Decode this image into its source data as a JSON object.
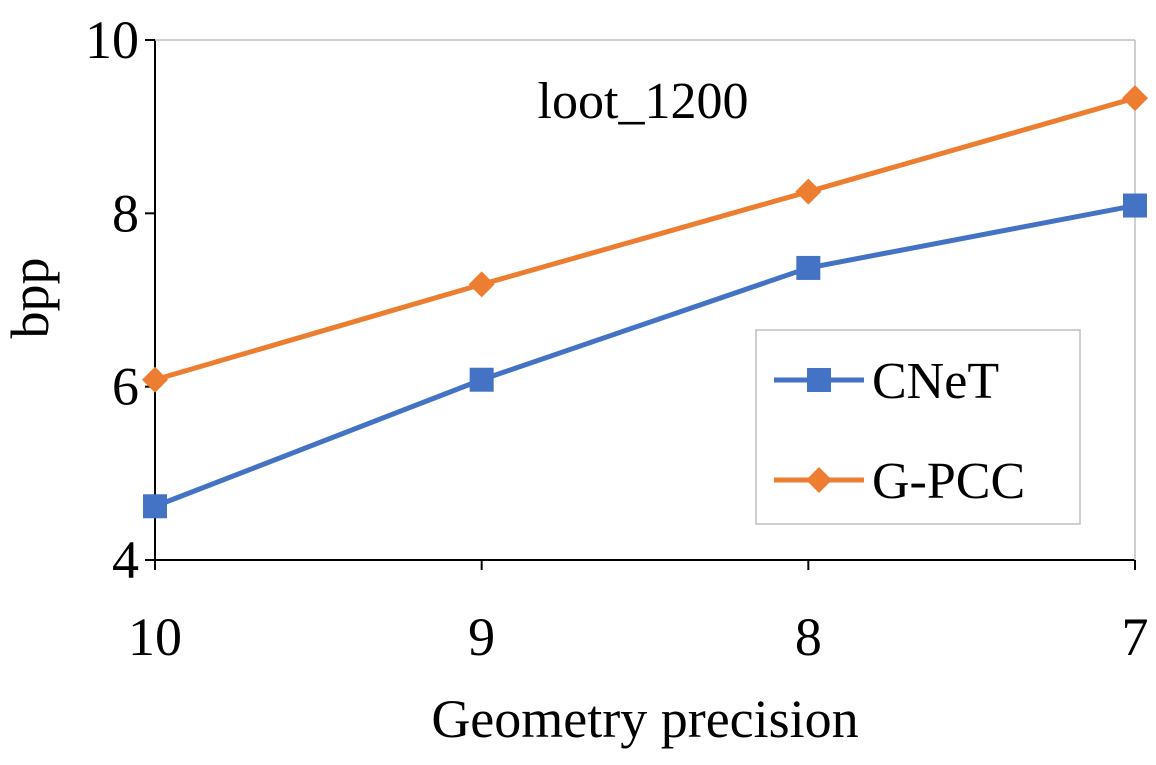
{
  "chart_data": {
    "type": "line",
    "title": "loot_1200",
    "xlabel": "Geometry precision",
    "ylabel": "bpp",
    "categories": [
      "10",
      "9",
      "8",
      "7"
    ],
    "ylim": [
      4,
      10
    ],
    "yticks": [
      "4",
      "6",
      "8",
      "10"
    ],
    "grid": false,
    "legend_position": "bottom-right",
    "series": [
      {
        "name": "CNeT",
        "values": [
          4.62,
          6.08,
          7.37,
          8.09
        ],
        "color": "#4472C4",
        "marker": "square"
      },
      {
        "name": "G-PCC",
        "values": [
          6.08,
          7.18,
          8.25,
          9.33
        ],
        "color": "#ED7D31",
        "marker": "diamond"
      }
    ]
  }
}
